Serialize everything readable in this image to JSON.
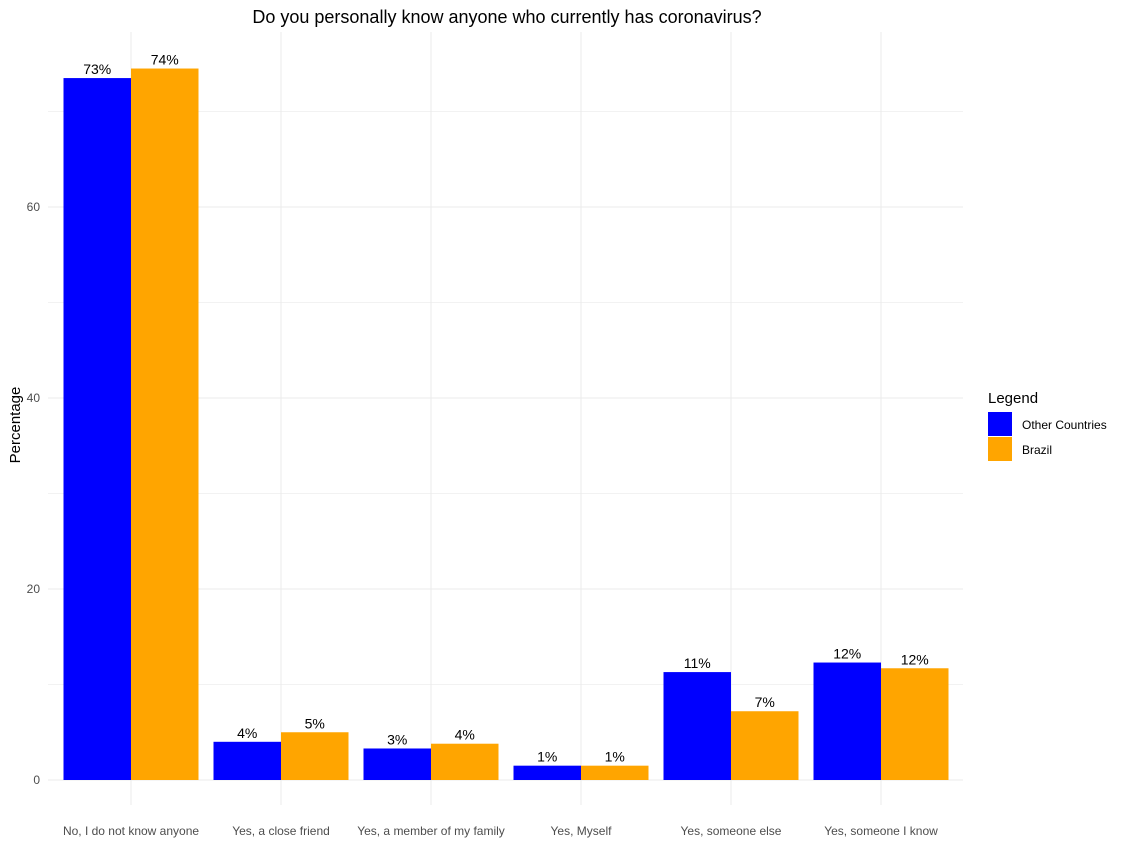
{
  "chart_data": {
    "type": "bar",
    "title": "Do you personally know anyone who currently has coronavirus?",
    "xlabel": "",
    "ylabel": "Percentage",
    "ylim": [
      0,
      74
    ],
    "yticks": [
      0,
      20,
      40,
      60
    ],
    "grid": true,
    "legend": {
      "title": "Legend",
      "position": "right"
    },
    "categories": [
      "No, I do not know anyone",
      "Yes, a close friend",
      "Yes, a member of my family",
      "Yes, Myself",
      "Yes, someone else",
      "Yes, someone I know"
    ],
    "series": [
      {
        "name": "Other Countries",
        "color": "#0000ff",
        "values": [
          73.5,
          4.0,
          3.3,
          1.5,
          11.3,
          12.3
        ],
        "labels": [
          "73%",
          "4%",
          "3%",
          "1%",
          "11%",
          "12%"
        ]
      },
      {
        "name": "Brazil",
        "color": "#ffa500",
        "values": [
          74.5,
          5.0,
          3.8,
          1.5,
          7.2,
          11.7
        ],
        "labels": [
          "74%",
          "5%",
          "4%",
          "1%",
          "7%",
          "12%"
        ]
      }
    ]
  }
}
